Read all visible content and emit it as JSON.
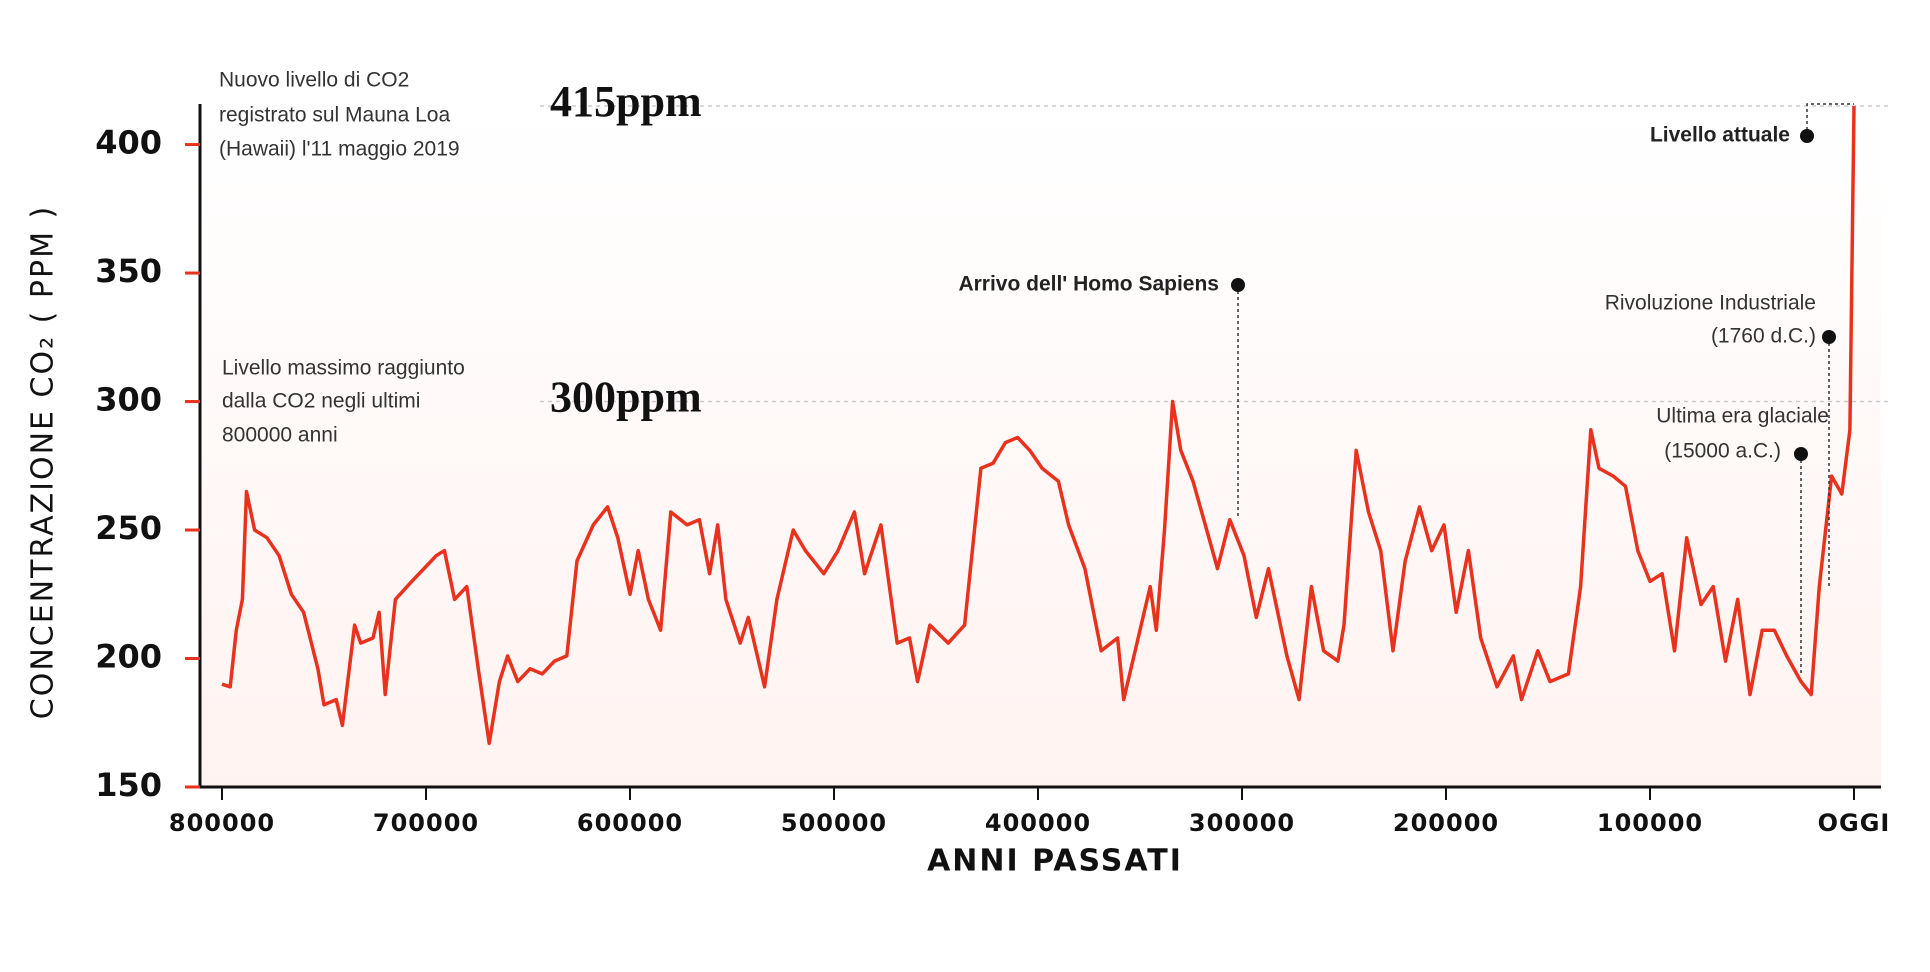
{
  "chart_data": {
    "type": "line",
    "ylabel": "CONCENTRAZIONE CO₂ ( PPM )",
    "xlabel": "ANNI PASSATI",
    "x": [
      800000,
      796000,
      793000,
      790000,
      788000,
      784000,
      778000,
      772000,
      766000,
      760000,
      753000,
      750000,
      744000,
      741000,
      735000,
      732000,
      726000,
      723000,
      720000,
      715000,
      707000,
      701000,
      695000,
      691000,
      686000,
      680000,
      674000,
      669000,
      664000,
      660000,
      655000,
      649000,
      643000,
      637000,
      631000,
      626000,
      618000,
      611000,
      606000,
      600000,
      596000,
      591000,
      585000,
      580000,
      572000,
      566000,
      561000,
      557000,
      553000,
      546000,
      542000,
      534000,
      528000,
      520000,
      514000,
      505000,
      498000,
      490000,
      485000,
      477000,
      469000,
      463000,
      459000,
      453000,
      444000,
      436000,
      428000,
      422000,
      416000,
      410000,
      404000,
      398000,
      390000,
      385000,
      377000,
      369000,
      361000,
      358000,
      350000,
      345000,
      342000,
      338000,
      334000,
      330000,
      324000,
      318000,
      312000,
      306000,
      299000,
      293000,
      287000,
      278000,
      272000,
      266000,
      260000,
      253000,
      250000,
      244000,
      238000,
      232000,
      226000,
      220000,
      213000,
      207000,
      201000,
      195000,
      189000,
      183000,
      175000,
      167000,
      163000,
      155000,
      149000,
      140000,
      134000,
      129000,
      125000,
      118000,
      112000,
      106000,
      100000,
      94000,
      88000,
      82000,
      75000,
      69000,
      63000,
      57000,
      51000,
      45000,
      39000,
      33000,
      26000,
      21000,
      17000,
      11000,
      6000,
      2000,
      0
    ],
    "series": [
      {
        "name": "CO2",
        "color": "#e8321e",
        "values": [
          190,
          189,
          211,
          223,
          265,
          250,
          247,
          240,
          225,
          218,
          196,
          182,
          184,
          174,
          213,
          206,
          208,
          218,
          186,
          223,
          230,
          235,
          240,
          242,
          223,
          228,
          194,
          167,
          191,
          201,
          191,
          196,
          194,
          199,
          201,
          238,
          252,
          259,
          247,
          225,
          242,
          223,
          211,
          257,
          252,
          254,
          233,
          252,
          223,
          206,
          216,
          189,
          223,
          250,
          242,
          233,
          242,
          257,
          233,
          252,
          206,
          208,
          191,
          213,
          206,
          213,
          274,
          276,
          284,
          286,
          281,
          274,
          269,
          252,
          235,
          203,
          208,
          184,
          211,
          228,
          211,
          250,
          300,
          281,
          269,
          252,
          235,
          254,
          240,
          216,
          235,
          201,
          184,
          228,
          203,
          199,
          213,
          281,
          257,
          242,
          203,
          238,
          259,
          242,
          252,
          218,
          242,
          208,
          189,
          201,
          184,
          203,
          191,
          194,
          228,
          289,
          274,
          271,
          267,
          242,
          230,
          233,
          203,
          247,
          221,
          228,
          199,
          223,
          186,
          211,
          211,
          201,
          191,
          186,
          228,
          271,
          264,
          289,
          415
        ]
      }
    ],
    "xlim": [
      800000,
      0
    ],
    "ylim": [
      150,
      415
    ],
    "xticks": [
      800000,
      700000,
      600000,
      500000,
      400000,
      300000,
      200000,
      100000,
      {
        "value": 0,
        "label": "OGGI"
      }
    ],
    "yticks": [
      150,
      200,
      250,
      300,
      350,
      400
    ],
    "reference_lines": [
      {
        "value": 415,
        "label": "415ppm"
      },
      {
        "value": 300,
        "label": "300ppm"
      }
    ],
    "annotations": [
      {
        "text": [
          "Nuovo livello di CO2",
          "registrato sul Mauna Loa",
          "(Hawaii) l'11 maggio 2019"
        ]
      },
      {
        "text": [
          "Livello massimo raggiunto",
          "dalla CO2 negli ultimi",
          "800000 anni"
        ]
      },
      {
        "text": [
          "Arrivo dell' Homo Sapiens"
        ]
      },
      {
        "text": [
          "Rivoluzione Industriale",
          "(1760 d.C.)"
        ]
      },
      {
        "text": [
          "Ultima era glaciale",
          "(15000 a.C.)"
        ]
      },
      {
        "text": [
          "Livello attuale"
        ]
      }
    ]
  }
}
